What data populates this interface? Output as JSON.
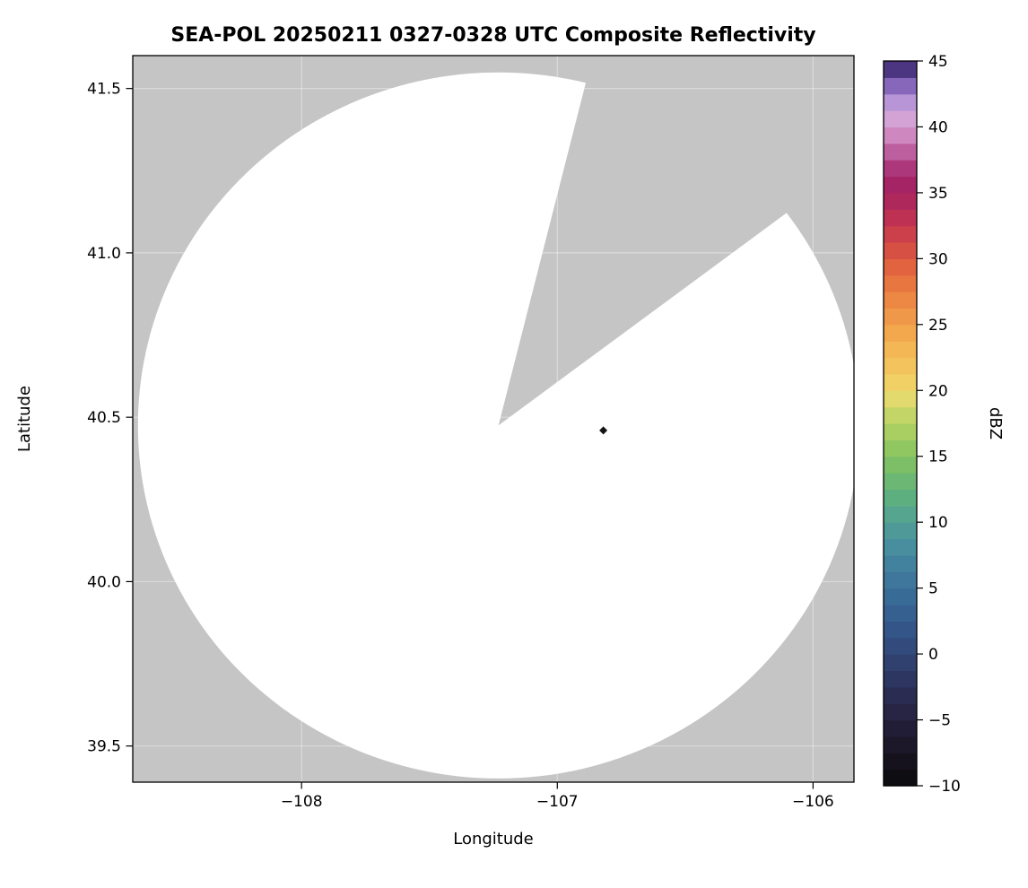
{
  "chart_data": {
    "type": "heatmap",
    "title": "SEA-POL 20250211 0327-0328 UTC Composite Reflectivity",
    "xlabel": "Longitude",
    "ylabel": "Latitude",
    "xlim": [
      -108.66,
      -105.84
    ],
    "ylim": [
      39.39,
      41.6
    ],
    "grid": true,
    "legend": false,
    "background_color": "#c5c5c5",
    "scan_area_color": "#ffffff",
    "xticks": {
      "values": [
        -108,
        -107,
        -106
      ],
      "labels": [
        "−108",
        "−107",
        "−106"
      ]
    },
    "yticks": {
      "values": [
        39.5,
        40.0,
        40.5,
        41.0,
        41.5
      ],
      "labels": [
        "39.5",
        "40.0",
        "40.5",
        "41.0",
        "41.5"
      ]
    },
    "radar": {
      "center": [
        -107.23,
        40.475
      ],
      "radius_deg_lon": 1.41,
      "radius_deg_lat": 1.074,
      "radius_km": 119,
      "missing_sector_azimuth_deg": [
        14,
        53
      ]
    },
    "echoes": [
      {
        "lon": -106.82,
        "lat": 40.46,
        "color": "#141414"
      }
    ],
    "colorbar": {
      "label": "dBZ",
      "min": -10,
      "max": 45,
      "n_bands": 44,
      "ticks": [
        -10,
        -5,
        0,
        5,
        10,
        15,
        20,
        25,
        30,
        35,
        40,
        45
      ],
      "tick_labels": [
        "−10",
        "−5",
        "0",
        "5",
        "10",
        "15",
        "20",
        "25",
        "30",
        "35",
        "40",
        "45"
      ],
      "stops": [
        [
          -10,
          "#0a0a0c"
        ],
        [
          -8,
          "#16131f"
        ],
        [
          -6,
          "#201b33"
        ],
        [
          -4,
          "#282747"
        ],
        [
          -2,
          "#2d355e"
        ],
        [
          0,
          "#314676"
        ],
        [
          2,
          "#335689"
        ],
        [
          4,
          "#386795"
        ],
        [
          6,
          "#3f7a9e"
        ],
        [
          8,
          "#488da0"
        ],
        [
          10,
          "#52a095"
        ],
        [
          12,
          "#5fb07f"
        ],
        [
          14,
          "#76bd69"
        ],
        [
          16,
          "#97c95f"
        ],
        [
          18,
          "#c0d465"
        ],
        [
          19,
          "#dbdb6c"
        ],
        [
          20,
          "#eed86d"
        ],
        [
          21,
          "#f3cd62"
        ],
        [
          23,
          "#f4b956"
        ],
        [
          25,
          "#f2a04b"
        ],
        [
          27,
          "#ed8643"
        ],
        [
          29,
          "#e4693f"
        ],
        [
          31,
          "#d44a45"
        ],
        [
          33,
          "#bf3252"
        ],
        [
          35,
          "#a8235f"
        ],
        [
          36,
          "#a32468"
        ],
        [
          37,
          "#ad3a7e"
        ],
        [
          38,
          "#bb5a9a"
        ],
        [
          39,
          "#ca7db6"
        ],
        [
          40,
          "#d49bcd"
        ],
        [
          41,
          "#d3a8dc"
        ],
        [
          42,
          "#b392d5"
        ],
        [
          43,
          "#8b6cbd"
        ],
        [
          44,
          "#5f459c"
        ],
        [
          45,
          "#2e1c55"
        ]
      ]
    }
  }
}
